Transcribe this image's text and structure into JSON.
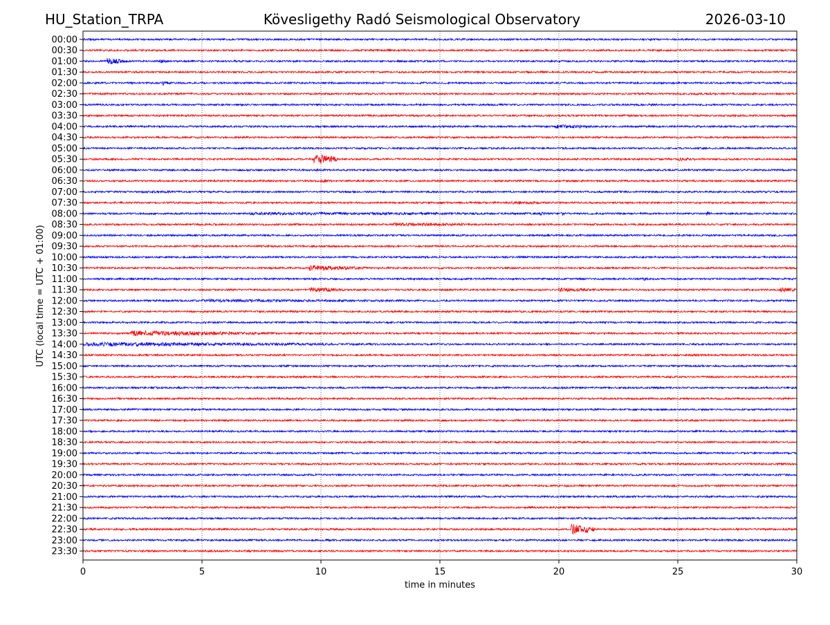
{
  "header": {
    "station": "HU_Station_TRPA",
    "observatory": "Kövesligethy Radó Seismological Observatory",
    "date": "2026-03-10"
  },
  "chart_data": {
    "type": "line",
    "title": "Kövesligethy Radó Seismological Observatory",
    "xlabel": "time in minutes",
    "ylabel": "UTC (local time = UTC + 01:00)",
    "xlim": [
      0,
      30
    ],
    "xticks": [
      "0",
      "5",
      "10",
      "15",
      "20",
      "25",
      "30"
    ],
    "grid": "vertical dotted at 5-minute intervals",
    "colors": [
      "#0000ff",
      "#ff0000"
    ],
    "traces": [
      "00:00",
      "00:30",
      "01:00",
      "01:30",
      "02:00",
      "02:30",
      "03:00",
      "03:30",
      "04:00",
      "04:30",
      "05:00",
      "05:30",
      "06:00",
      "06:30",
      "07:00",
      "07:30",
      "08:00",
      "08:30",
      "09:00",
      "09:30",
      "10:00",
      "10:30",
      "11:00",
      "11:30",
      "12:00",
      "12:30",
      "13:00",
      "13:30",
      "14:00",
      "14:30",
      "15:00",
      "15:30",
      "16:00",
      "16:30",
      "17:00",
      "17:30",
      "18:00",
      "18:30",
      "19:00",
      "19:30",
      "20:00",
      "20:30",
      "21:00",
      "21:30",
      "22:00",
      "22:30",
      "23:00",
      "23:30"
    ],
    "events_note": "relative amplitude bursts: [trace, start_min, duration_min, amplitude]",
    "events": [
      [
        "01:00",
        1.0,
        0.8,
        5
      ],
      [
        "01:00",
        3.2,
        0.4,
        3
      ],
      [
        "02:00",
        3.3,
        0.3,
        4
      ],
      [
        "04:00",
        19.8,
        2.0,
        3
      ],
      [
        "05:30",
        9.7,
        1.0,
        8
      ],
      [
        "05:30",
        25.0,
        1.5,
        2.5
      ],
      [
        "06:30",
        10.0,
        0.5,
        3
      ],
      [
        "07:00",
        2.5,
        2.5,
        2
      ],
      [
        "07:30",
        18.0,
        2.0,
        2.5
      ],
      [
        "08:00",
        7.0,
        19.0,
        2.2
      ],
      [
        "08:00",
        19.2,
        0.2,
        4
      ],
      [
        "08:00",
        20.1,
        0.2,
        4
      ],
      [
        "08:00",
        26.2,
        0.2,
        4
      ],
      [
        "08:30",
        13.0,
        5.0,
        2.5
      ],
      [
        "10:30",
        9.5,
        2.5,
        4
      ],
      [
        "11:00",
        23.5,
        0.3,
        3
      ],
      [
        "11:30",
        9.5,
        1.5,
        4
      ],
      [
        "11:30",
        20.0,
        2.0,
        3
      ],
      [
        "11:30",
        29.3,
        0.7,
        4
      ],
      [
        "12:00",
        5.0,
        14.0,
        2.2
      ],
      [
        "13:30",
        2.0,
        6.0,
        4
      ],
      [
        "14:00",
        0.0,
        14.0,
        3
      ],
      [
        "22:30",
        20.5,
        1.0,
        8
      ]
    ]
  }
}
